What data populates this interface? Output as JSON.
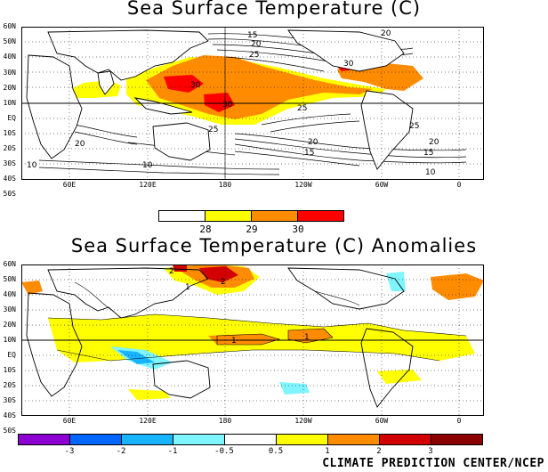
{
  "top_panel": {
    "title": "Sea Surface Temperature (C)",
    "lat_labels": [
      "60N",
      "50N",
      "40N",
      "30N",
      "20N",
      "10N",
      "EQ",
      "10S",
      "20S",
      "30S",
      "40S",
      "50S"
    ],
    "lon_labels": [
      "60E",
      "120E",
      "180",
      "120W",
      "60W",
      "0"
    ],
    "contour_labels": [
      "15",
      "20",
      "25",
      "30",
      "30",
      "30",
      "25",
      "20",
      "20",
      "20",
      "20",
      "15",
      "15",
      "10",
      "10",
      "25",
      "25",
      "10"
    ]
  },
  "top_legend": {
    "labels": [
      "28",
      "29",
      "30"
    ],
    "colors": [
      "#ffffff",
      "#ffff00",
      "#ff8c00",
      "#ff0000"
    ]
  },
  "bottom_panel": {
    "title": "Sea Surface Temperature (C) Anomalies",
    "lat_labels": [
      "60N",
      "50N",
      "40N",
      "30N",
      "20N",
      "10N",
      "EQ",
      "10S",
      "20S",
      "30S",
      "40S",
      "50S"
    ],
    "lon_labels": [
      "60E",
      "120E",
      "180",
      "120W",
      "60W",
      "0"
    ],
    "contour_labels": [
      "2",
      "2",
      "1",
      "1",
      "1"
    ]
  },
  "bottom_legend": {
    "labels": [
      "-3",
      "-2",
      "-1",
      "-0.5",
      "0.5",
      "1",
      "2",
      "3"
    ],
    "colors": [
      "#8c00d2",
      "#0066ff",
      "#19b4ff",
      "#7ff5ff",
      "#ffffff",
      "#ffff00",
      "#ff8c00",
      "#d20000",
      "#8b0000"
    ]
  },
  "credit": "CLIMATE PREDICTION CENTER/NCEP"
}
